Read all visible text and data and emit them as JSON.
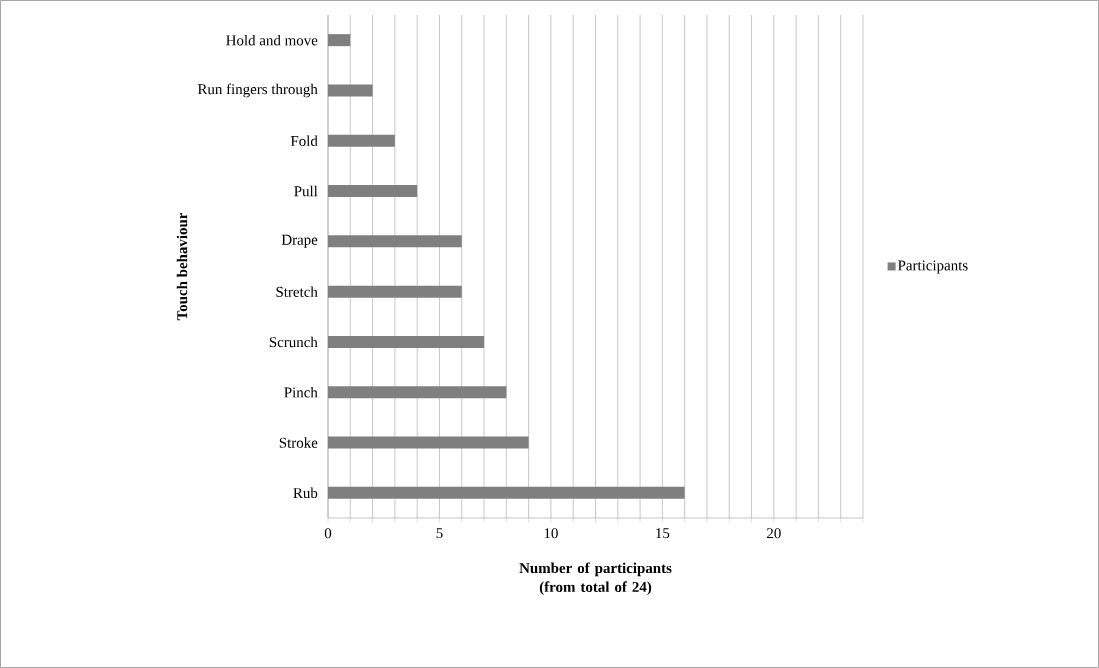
{
  "chart_data": {
    "type": "bar",
    "orientation": "horizontal",
    "xlabel": "Number of participants (from total of 24)",
    "ylabel": "Touch behaviour",
    "categories": [
      "Hold and move",
      "Run fingers through",
      "Fold",
      "Pull",
      "Drape",
      "Stretch",
      "Scrunch",
      "Pinch",
      "Stroke",
      "Rub"
    ],
    "series": [
      {
        "name": "Participants",
        "color": "#7f7f7f",
        "values": [
          1,
          2,
          3,
          4,
          6,
          6,
          7,
          8,
          9,
          16
        ]
      }
    ],
    "xlim": [
      0,
      24
    ],
    "xticks": [
      0,
      {
        "value": 1,
        "label": null
      },
      {
        "value": 2,
        "label": null
      },
      {
        "value": 3,
        "label": null
      },
      {
        "value": 4,
        "label": null
      },
      5,
      {
        "value": 6,
        "label": null
      },
      {
        "value": 7,
        "label": null
      },
      {
        "value": 8,
        "label": null
      },
      {
        "value": 9,
        "label": null
      },
      10,
      {
        "value": 11,
        "label": null
      },
      {
        "value": 12,
        "label": null
      },
      {
        "value": 13,
        "label": null
      },
      {
        "value": 14,
        "label": null
      },
      15,
      {
        "value": 16,
        "label": null
      },
      {
        "value": 17,
        "label": null
      },
      {
        "value": 18,
        "label": null
      },
      {
        "value": 19,
        "label": null
      },
      20,
      {
        "value": 21,
        "label": null
      },
      {
        "value": 22,
        "label": null
      },
      {
        "value": 23,
        "label": null
      },
      {
        "value": 24,
        "label": null
      }
    ],
    "grid": "x",
    "legend": "right"
  }
}
